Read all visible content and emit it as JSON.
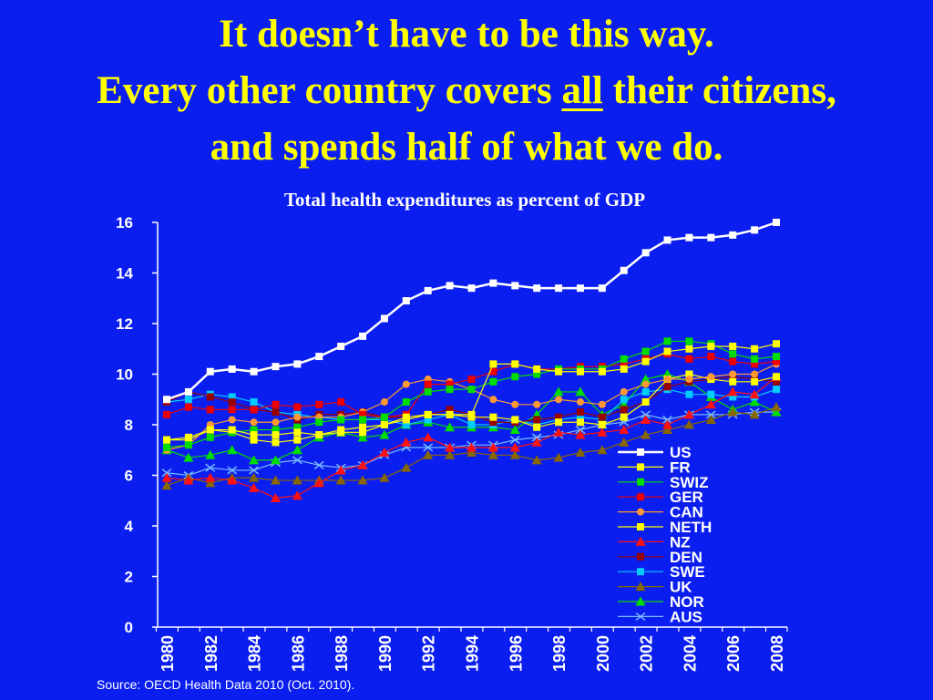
{
  "headline": {
    "line1": "It doesn’t have to be this way.",
    "line2_before": "Every other country covers ",
    "line2_emph": "all",
    "line2_after": " their citizens,",
    "line3": "and spends half of what we do."
  },
  "source": "Source: OECD Health Data 2010 (Oct. 2010).",
  "colors": {
    "background": "#0b1ef0",
    "headline": "#ffff00",
    "text": "#ffffff"
  },
  "chart_data": {
    "type": "line",
    "title": "Total health expenditures as percent of GDP",
    "xlabel": "",
    "ylabel": "",
    "ylim": [
      0,
      16
    ],
    "yticks": [
      0,
      2,
      4,
      6,
      8,
      10,
      12,
      14,
      16
    ],
    "x": [
      1980,
      1981,
      1982,
      1983,
      1984,
      1985,
      1986,
      1987,
      1988,
      1989,
      1990,
      1991,
      1992,
      1993,
      1994,
      1995,
      1996,
      1997,
      1998,
      1999,
      2000,
      2001,
      2002,
      2003,
      2004,
      2005,
      2006,
      2007,
      2008
    ],
    "xtick_labels": [
      "1980",
      "1982",
      "1984",
      "1986",
      "1988",
      "1990",
      "1992",
      "1994",
      "1996",
      "1998",
      "2000",
      "2002",
      "2004",
      "2006",
      "2008"
    ],
    "legend_position": "lower-right",
    "series": [
      {
        "name": "US",
        "color": "#ffffff",
        "marker": "square",
        "values": [
          9.0,
          9.3,
          10.1,
          10.2,
          10.1,
          10.3,
          10.4,
          10.7,
          11.1,
          11.5,
          12.2,
          12.9,
          13.3,
          13.5,
          13.4,
          13.6,
          13.5,
          13.4,
          13.4,
          13.4,
          13.4,
          14.1,
          14.8,
          15.3,
          15.4,
          15.4,
          15.5,
          15.7,
          16.0
        ]
      },
      {
        "name": "FR",
        "color": "#ffff00",
        "marker": "square",
        "values": [
          7.4,
          7.5,
          7.8,
          7.8,
          7.6,
          7.6,
          7.7,
          7.6,
          7.8,
          7.9,
          8.0,
          8.3,
          8.4,
          8.4,
          8.4,
          10.4,
          10.4,
          10.2,
          10.1,
          10.1,
          10.1,
          10.2,
          10.5,
          10.9,
          11.0,
          11.1,
          11.1,
          11.0,
          11.2
        ]
      },
      {
        "name": "SWIZ",
        "color": "#00dd00",
        "marker": "square",
        "values": [
          7.1,
          7.2,
          7.5,
          7.7,
          7.8,
          7.8,
          7.9,
          8.1,
          8.2,
          8.2,
          8.3,
          8.9,
          9.3,
          9.4,
          9.4,
          9.7,
          9.9,
          10.0,
          10.2,
          10.2,
          10.2,
          10.6,
          10.9,
          11.3,
          11.3,
          11.2,
          10.8,
          10.6,
          10.7
        ]
      },
      {
        "name": "GER",
        "color": "#ee0000",
        "marker": "square",
        "values": [
          8.4,
          8.7,
          8.6,
          8.6,
          8.6,
          8.8,
          8.7,
          8.8,
          8.9,
          8.4,
          8.3,
          8.4,
          9.6,
          9.6,
          9.8,
          10.1,
          10.4,
          10.2,
          10.2,
          10.3,
          10.3,
          10.4,
          10.6,
          10.8,
          10.6,
          10.7,
          10.5,
          10.4,
          10.5
        ]
      },
      {
        "name": "CAN",
        "color": "#ff9933",
        "marker": "circle",
        "values": [
          7.0,
          7.2,
          8.0,
          8.2,
          8.1,
          8.1,
          8.3,
          8.3,
          8.3,
          8.5,
          8.9,
          9.6,
          9.8,
          9.7,
          9.4,
          9.0,
          8.8,
          8.8,
          9.0,
          8.9,
          8.8,
          9.3,
          9.6,
          9.8,
          9.8,
          9.9,
          10.0,
          10.0,
          10.4
        ]
      },
      {
        "name": "NETH",
        "color": "#ffff00",
        "marker": "square",
        "values": [
          7.4,
          7.4,
          7.8,
          7.7,
          7.4,
          7.3,
          7.4,
          7.6,
          7.7,
          7.7,
          8.0,
          8.2,
          8.4,
          8.4,
          8.3,
          8.3,
          8.2,
          7.9,
          8.1,
          8.1,
          8.0,
          8.3,
          8.9,
          9.8,
          10.0,
          9.8,
          9.7,
          9.7,
          9.9
        ]
      },
      {
        "name": "NZ",
        "color": "#ff1111",
        "marker": "triangle",
        "values": [
          5.9,
          5.8,
          5.9,
          5.8,
          5.5,
          5.1,
          5.2,
          5.7,
          6.2,
          6.4,
          6.9,
          7.3,
          7.5,
          7.1,
          7.1,
          7.1,
          7.1,
          7.3,
          7.7,
          7.6,
          7.7,
          7.8,
          8.2,
          8.0,
          8.4,
          8.8,
          9.3,
          9.2,
          9.9
        ]
      },
      {
        "name": "DEN",
        "color": "#990000",
        "marker": "square",
        "values": [
          8.9,
          9.3,
          9.1,
          8.9,
          8.6,
          8.5,
          8.2,
          8.4,
          8.4,
          8.5,
          8.3,
          8.3,
          8.4,
          8.6,
          8.4,
          8.1,
          8.1,
          8.2,
          8.3,
          8.5,
          8.3,
          8.6,
          8.9,
          9.5,
          9.7,
          9.8,
          9.9,
          9.8,
          9.7
        ]
      },
      {
        "name": "SWE",
        "color": "#00ccff",
        "marker": "square",
        "values": [
          8.9,
          9.0,
          9.2,
          9.1,
          8.9,
          8.5,
          8.4,
          8.3,
          8.2,
          8.2,
          8.2,
          8.0,
          8.2,
          8.4,
          8.0,
          8.0,
          8.2,
          8.0,
          8.2,
          8.3,
          8.2,
          9.0,
          9.3,
          9.4,
          9.2,
          9.2,
          9.1,
          9.1,
          9.4
        ]
      },
      {
        "name": "UK",
        "color": "#886600",
        "marker": "triangle",
        "values": [
          5.6,
          5.9,
          5.7,
          5.9,
          5.9,
          5.8,
          5.8,
          5.8,
          5.8,
          5.8,
          5.9,
          6.3,
          6.8,
          6.8,
          6.9,
          6.8,
          6.8,
          6.6,
          6.7,
          6.9,
          7.0,
          7.3,
          7.6,
          7.8,
          8.0,
          8.2,
          8.5,
          8.4,
          8.7
        ]
      },
      {
        "name": "NOR",
        "color": "#00dd00",
        "marker": "triangle",
        "values": [
          7.0,
          6.7,
          6.8,
          7.0,
          6.6,
          6.6,
          7.0,
          7.5,
          7.7,
          7.5,
          7.6,
          8.0,
          8.1,
          7.9,
          7.9,
          7.9,
          7.8,
          8.4,
          9.3,
          9.3,
          8.4,
          8.8,
          9.8,
          10.0,
          9.7,
          9.1,
          8.6,
          8.9,
          8.5
        ]
      },
      {
        "name": "AUS",
        "color": "#77bbff",
        "marker": "x",
        "values": [
          6.1,
          6.0,
          6.3,
          6.2,
          6.2,
          6.5,
          6.6,
          6.4,
          6.3,
          6.4,
          6.8,
          7.1,
          7.1,
          7.1,
          7.2,
          7.2,
          7.4,
          7.5,
          7.6,
          7.8,
          8.0,
          8.1,
          8.4,
          8.2,
          8.4,
          8.4,
          8.4,
          8.5,
          8.5
        ]
      }
    ]
  }
}
